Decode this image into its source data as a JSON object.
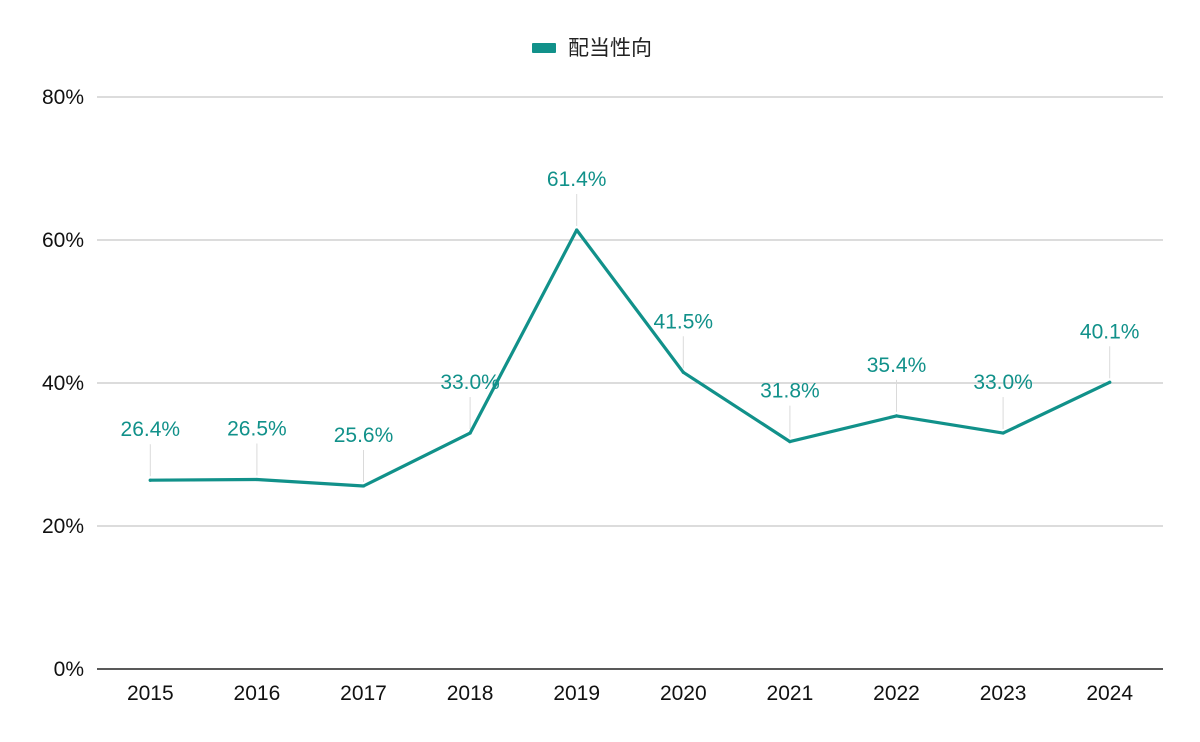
{
  "colors": {
    "series": "#11918A",
    "grid": "#C8C8C8",
    "axis": "#222222",
    "leader": "#DADADA"
  },
  "legend": {
    "label": "配当性向",
    "placement": "top-center"
  },
  "chart_data": {
    "type": "line",
    "categories": [
      "2015",
      "2016",
      "2017",
      "2018",
      "2019",
      "2020",
      "2021",
      "2022",
      "2023",
      "2024"
    ],
    "series": [
      {
        "name": "配当性向",
        "values": [
          26.4,
          26.5,
          25.6,
          33.0,
          61.4,
          41.5,
          31.8,
          35.4,
          33.0,
          40.1
        ],
        "data_labels": [
          "26.4%",
          "26.5%",
          "25.6%",
          "33.0%",
          "61.4%",
          "41.5%",
          "31.8%",
          "35.4%",
          "33.0%",
          "40.1%"
        ]
      }
    ],
    "y_ticks": [
      0,
      20,
      40,
      60,
      80
    ],
    "y_tick_labels": [
      "0%",
      "20%",
      "40%",
      "60%",
      "80%"
    ],
    "ylim": [
      0,
      80
    ],
    "grid": true,
    "title": "",
    "xlabel": "",
    "ylabel": ""
  }
}
